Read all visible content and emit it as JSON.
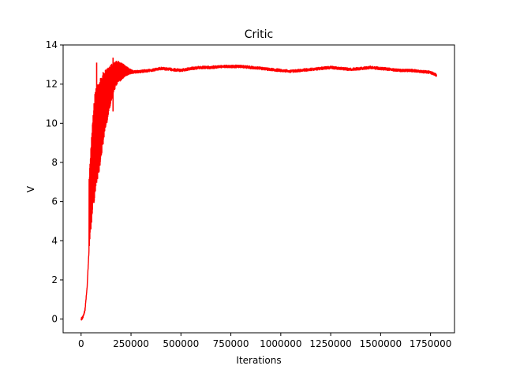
{
  "chart_data": {
    "type": "line",
    "title": "Critic",
    "xlabel": "Iterations",
    "ylabel": "V",
    "xlim": [
      -90000,
      1870000
    ],
    "ylim": [
      -0.7,
      14
    ],
    "xticks": [
      0,
      250000,
      500000,
      750000,
      1000000,
      1250000,
      1500000,
      1750000
    ],
    "xtick_labels": [
      "0",
      "250000",
      "500000",
      "750000",
      "1000000",
      "1250000",
      "1500000",
      "1750000"
    ],
    "yticks": [
      0,
      2,
      4,
      6,
      8,
      10,
      12,
      14
    ],
    "ytick_labels": [
      "0",
      "2",
      "4",
      "6",
      "8",
      "10",
      "12",
      "14"
    ],
    "grid": false,
    "series": [
      {
        "color": "#ff0000",
        "trend": {
          "x": [
            0,
            10000,
            20000,
            30000,
            40000,
            50000,
            60000,
            70000,
            80000,
            90000,
            100000,
            120000,
            140000,
            160000,
            180000,
            200000,
            220000,
            250000,
            300000,
            350000,
            400000,
            450000,
            500000,
            550000,
            600000,
            650000,
            700000,
            750000,
            800000,
            850000,
            900000,
            950000,
            1000000,
            1050000,
            1100000,
            1150000,
            1200000,
            1250000,
            1300000,
            1350000,
            1400000,
            1450000,
            1500000,
            1550000,
            1600000,
            1650000,
            1700000,
            1750000,
            1780000
          ],
          "y": [
            0.0,
            0.1,
            0.5,
            1.6,
            3.6,
            5.5,
            6.8,
            7.6,
            8.3,
            8.9,
            9.5,
            10.4,
            11.2,
            11.8,
            12.2,
            12.4,
            12.5,
            12.6,
            12.65,
            12.7,
            12.8,
            12.75,
            12.7,
            12.8,
            12.85,
            12.85,
            12.9,
            12.9,
            12.9,
            12.85,
            12.8,
            12.75,
            12.7,
            12.65,
            12.7,
            12.75,
            12.8,
            12.85,
            12.8,
            12.75,
            12.8,
            12.85,
            12.8,
            12.75,
            12.7,
            12.7,
            12.65,
            12.6,
            12.45
          ]
        },
        "envelope": {
          "x": [
            40000,
            50000,
            60000,
            70000,
            80000,
            90000,
            100000,
            120000,
            140000,
            160000,
            180000,
            200000,
            220000,
            240000,
            260000
          ],
          "upper": [
            7.2,
            9.0,
            10.5,
            11.6,
            12.0,
            12.3,
            12.5,
            12.7,
            12.9,
            13.1,
            13.2,
            13.1,
            12.95,
            12.8,
            12.7
          ],
          "lower": [
            3.4,
            4.6,
            5.6,
            6.3,
            6.9,
            7.5,
            8.2,
            9.5,
            10.6,
            11.5,
            12.0,
            12.2,
            12.4,
            12.5,
            12.55
          ]
        },
        "spikes": [
          {
            "x": 78000,
            "y": 13.1
          },
          {
            "x": 160000,
            "y": 13.35
          }
        ]
      }
    ]
  }
}
